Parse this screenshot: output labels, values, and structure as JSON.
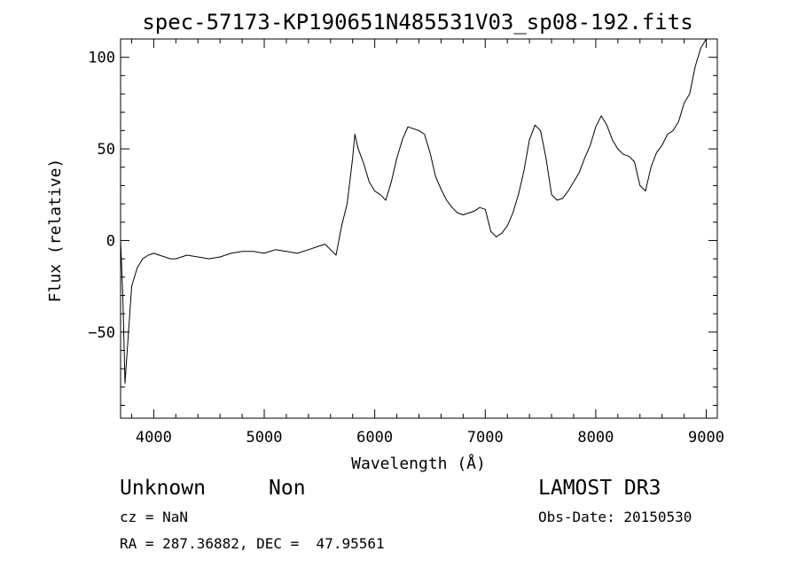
{
  "chart_data": {
    "type": "line",
    "title": "spec-57173-KP190651N485531V03_sp08-192.fits",
    "xlabel": "Wavelength (Å)",
    "ylabel": "Flux (relative)",
    "xlim": [
      3700,
      9100
    ],
    "ylim": [
      -97,
      110
    ],
    "xticks": [
      4000,
      5000,
      6000,
      7000,
      8000,
      9000
    ],
    "yticks": [
      -50,
      0,
      50,
      100
    ],
    "grid": false,
    "series": [
      {
        "x": [
          3700,
          3720,
          3740,
          3760,
          3800,
          3850,
          3900,
          3950,
          4000,
          4050,
          4100,
          4150,
          4200,
          4300,
          4400,
          4500,
          4600,
          4700,
          4800,
          4900,
          5000,
          5100,
          5200,
          5300,
          5400,
          5500,
          5550,
          5600,
          5650,
          5700,
          5750,
          5800,
          5820,
          5850,
          5900,
          5950,
          6000,
          6050,
          6100,
          6150,
          6200,
          6250,
          6300,
          6350,
          6400,
          6450,
          6500,
          6550,
          6600,
          6650,
          6700,
          6750,
          6800,
          6850,
          6900,
          6950,
          7000,
          7050,
          7100,
          7150,
          7200,
          7250,
          7300,
          7350,
          7400,
          7450,
          7500,
          7550,
          7600,
          7650,
          7700,
          7750,
          7800,
          7850,
          7900,
          7950,
          8000,
          8050,
          8100,
          8150,
          8200,
          8250,
          8300,
          8350,
          8400,
          8450,
          8500,
          8550,
          8600,
          8650,
          8700,
          8750,
          8800,
          8850,
          8900,
          8950,
          9000
        ],
        "y": [
          0,
          -30,
          -78,
          -60,
          -25,
          -15,
          -10,
          -8,
          -7,
          -8,
          -9,
          -10,
          -10,
          -8,
          -9,
          -10,
          -9,
          -7,
          -6,
          -6,
          -7,
          -5,
          -6,
          -7,
          -5,
          -3,
          -2,
          -5,
          -8,
          8,
          20,
          45,
          58,
          50,
          42,
          32,
          27,
          25,
          22,
          32,
          45,
          55,
          62,
          61,
          60,
          58,
          48,
          35,
          28,
          22,
          18,
          15,
          14,
          15,
          16,
          18,
          17,
          5,
          2,
          4,
          8,
          15,
          25,
          38,
          55,
          63,
          60,
          45,
          25,
          22,
          23,
          27,
          32,
          37,
          45,
          52,
          62,
          68,
          63,
          55,
          50,
          47,
          46,
          43,
          30,
          27,
          40,
          48,
          52,
          58,
          60,
          65,
          75,
          80,
          95,
          105,
          110
        ]
      }
    ]
  },
  "info": {
    "class": "Unknown",
    "subclass": "Non",
    "survey": "LAMOST DR3",
    "cz": "cz = NaN",
    "obs_date": "Obs-Date: 20150530",
    "radec": "RA = 287.36882, DEC =  47.95561"
  }
}
